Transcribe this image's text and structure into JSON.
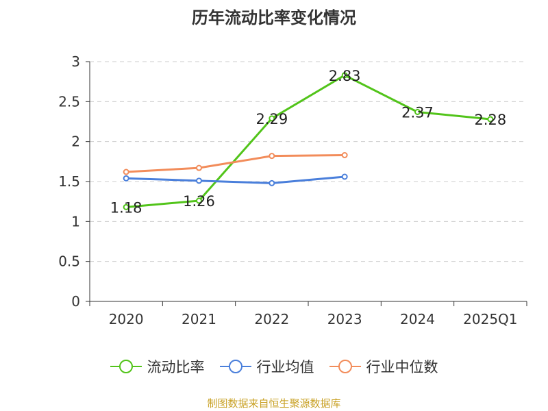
{
  "chart_data": {
    "type": "line",
    "title": "历年流动比率变化情况",
    "xlabel": "",
    "ylabel": "",
    "categories": [
      "2020",
      "2021",
      "2022",
      "2023",
      "2024",
      "2025Q1"
    ],
    "ylim": [
      0,
      3
    ],
    "yticks": [
      "0",
      "0.5",
      "1",
      "1.5",
      "2",
      "2.5",
      "3"
    ],
    "grid": "horizontal-dashed",
    "legend_position": "bottom",
    "series": [
      {
        "name": "流动比率",
        "color": "#52c41a",
        "values": [
          1.18,
          1.26,
          2.29,
          2.83,
          2.37,
          2.28
        ],
        "labels": [
          "1.18",
          "1.26",
          "2.29",
          "2.83",
          "2.37",
          "2.28"
        ]
      },
      {
        "name": "行业均值",
        "color": "#4a7fdb",
        "values": [
          1.54,
          1.51,
          1.48,
          1.56,
          null,
          null
        ]
      },
      {
        "name": "行业中位数",
        "color": "#f28c5a",
        "values": [
          1.62,
          1.67,
          1.82,
          1.83,
          null,
          null
        ]
      }
    ]
  },
  "source_note": "制图数据来自恒生聚源数据库"
}
